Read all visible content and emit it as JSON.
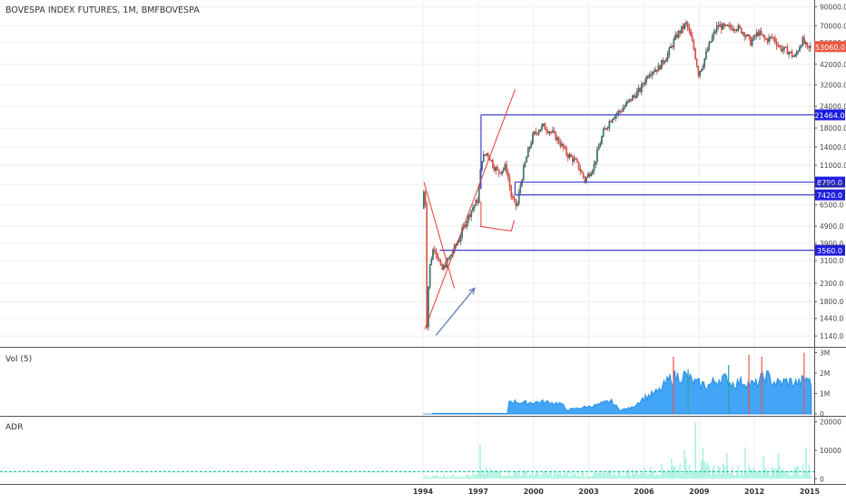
{
  "header": {
    "title": "BOVESPA INDEX FUTURES, 1M, BMFBOVESPA"
  },
  "colors": {
    "up": "#26a69a",
    "down": "#ef5350",
    "body_up": "#2b2b2b",
    "body_down": "#c0392b",
    "level_line": "#3f3fd0",
    "level_box": "#1e1ee0",
    "price_box": "#e9573f",
    "drawing_red": "#e53935",
    "drawing_arrow": "#5c79b5",
    "volume": "#1e88e5",
    "volume_area": "#42a5f5",
    "adr": "#a7f3de",
    "adr_line": "#26c6a9",
    "grid": "#eeeeee",
    "border": "#555555"
  },
  "chart_data": [
    {
      "type": "candlestick",
      "name": "price",
      "title": "BOVESPA INDEX FUTURES, 1M, BMFBOVESPA",
      "y_scale": "log",
      "ylim": [
        1000,
        95000
      ],
      "y_ticks": [
        1140,
        1440,
        1800,
        2300,
        3100,
        3900,
        4900,
        6500,
        8500,
        11000,
        14000,
        18000,
        24000,
        32000,
        42000,
        56000,
        70000,
        90000
      ],
      "y_tick_labels": [
        "1140.0",
        "1440.0",
        "1800.0",
        "2300.0",
        "3100.0",
        "3900.0",
        "4900.0",
        "6500.0",
        "8500.0",
        "11000.0",
        "14000.0",
        "18000.0",
        "24000.0",
        "32000.0",
        "42000.0",
        "56000.0",
        "70000.0",
        "90000.0"
      ],
      "x_range": [
        1994.0,
        2015.1
      ],
      "x_ticks": [
        1994,
        1997,
        2000,
        2003,
        2006,
        2009,
        2012,
        2015
      ],
      "x_tick_labels": [
        "1994",
        "1997",
        "2000",
        "2003",
        "2006",
        "2009",
        "2012",
        "2015"
      ],
      "price_path": [
        [
          1994.0,
          6200
        ],
        [
          1994.05,
          8000
        ],
        [
          1994.12,
          7000
        ],
        [
          1994.2,
          1250
        ],
        [
          1994.35,
          2800
        ],
        [
          1994.6,
          3800
        ],
        [
          1995.0,
          2700
        ],
        [
          1995.5,
          3300
        ],
        [
          1996.0,
          4200
        ],
        [
          1996.6,
          6000
        ],
        [
          1997.0,
          7000
        ],
        [
          1997.2,
          12000
        ],
        [
          1997.5,
          13000
        ],
        [
          1997.8,
          11000
        ],
        [
          1998.1,
          10000
        ],
        [
          1998.5,
          10800
        ],
        [
          1998.8,
          7200
        ],
        [
          1999.1,
          6300
        ],
        [
          1999.5,
          10800
        ],
        [
          2000.0,
          16500
        ],
        [
          2000.5,
          18500
        ],
        [
          2001.0,
          17000
        ],
        [
          2001.4,
          15000
        ],
        [
          2001.8,
          12800
        ],
        [
          2002.3,
          11500
        ],
        [
          2002.8,
          9000
        ],
        [
          2003.3,
          11000
        ],
        [
          2003.8,
          17000
        ],
        [
          2004.3,
          21000
        ],
        [
          2004.8,
          23000
        ],
        [
          2005.3,
          26500
        ],
        [
          2005.8,
          30000
        ],
        [
          2006.3,
          38000
        ],
        [
          2006.8,
          40000
        ],
        [
          2007.3,
          48000
        ],
        [
          2007.8,
          62000
        ],
        [
          2008.3,
          72000
        ],
        [
          2008.7,
          52000
        ],
        [
          2008.95,
          37000
        ],
        [
          2009.2,
          42000
        ],
        [
          2009.6,
          56000
        ],
        [
          2010.0,
          70000
        ],
        [
          2010.5,
          68000
        ],
        [
          2011.0,
          69000
        ],
        [
          2011.5,
          63000
        ],
        [
          2011.8,
          56000
        ],
        [
          2012.2,
          64000
        ],
        [
          2012.6,
          58000
        ],
        [
          2013.0,
          60000
        ],
        [
          2013.4,
          52000
        ],
        [
          2013.8,
          50000
        ],
        [
          2014.2,
          46000
        ],
        [
          2014.6,
          58000
        ],
        [
          2014.9,
          51000
        ],
        [
          2015.1,
          53060
        ]
      ],
      "current_price": "53060.0",
      "levels": [
        {
          "value": 21464,
          "label": "21464.0",
          "from_x": 1997.15
        },
        {
          "value": 8790,
          "label": "8790.0",
          "from_x": 1999.0
        },
        {
          "value": 7420,
          "label": "7420.0",
          "from_x": 1999.0
        },
        {
          "value": 3560,
          "label": "3560.0",
          "from_x": 1994.9
        }
      ]
    },
    {
      "type": "volume",
      "name": "Vol (5)",
      "title": "Vol (5)",
      "ylim": [
        0,
        3200000
      ],
      "y_ticks": [
        0,
        1000000,
        2000000,
        3000000
      ],
      "y_tick_labels": [
        "0",
        "1M",
        "2M",
        "3M"
      ],
      "path": [
        [
          1994.0,
          0
        ],
        [
          1998.6,
          0
        ],
        [
          1998.65,
          650000
        ],
        [
          1999.5,
          550000
        ],
        [
          2000.5,
          600000
        ],
        [
          2001.5,
          520000
        ],
        [
          2001.8,
          200000
        ],
        [
          2002.5,
          300000
        ],
        [
          2003.5,
          450000
        ],
        [
          2004.2,
          650000
        ],
        [
          2004.7,
          200000
        ],
        [
          2005.3,
          300000
        ],
        [
          2006.0,
          800000
        ],
        [
          2006.8,
          1100000
        ],
        [
          2007.5,
          1800000
        ],
        [
          2008.2,
          1900000
        ],
        [
          2008.8,
          1500000
        ],
        [
          2009.5,
          1400000
        ],
        [
          2010.2,
          1800000
        ],
        [
          2010.8,
          1500000
        ],
        [
          2011.5,
          1600000
        ],
        [
          2012.0,
          1400000
        ],
        [
          2012.6,
          1900000
        ],
        [
          2013.2,
          1500000
        ],
        [
          2013.8,
          1600000
        ],
        [
          2014.4,
          1500000
        ],
        [
          2014.9,
          1800000
        ],
        [
          2015.1,
          1300000
        ]
      ],
      "spikes": [
        [
          2007.6,
          2800000
        ],
        [
          2008.4,
          2200000
        ],
        [
          2010.6,
          2400000
        ],
        [
          2011.7,
          2900000
        ],
        [
          2012.4,
          2800000
        ],
        [
          2014.7,
          3000000
        ]
      ]
    },
    {
      "type": "area",
      "name": "ADR",
      "title": "ADR",
      "ylim": [
        -1500,
        21500
      ],
      "y_ticks": [
        0,
        10000,
        20000
      ],
      "y_tick_labels": [
        "0",
        "10000",
        "20000"
      ],
      "reference_line": 2500,
      "baseline_path": [
        [
          1994.0,
          800
        ],
        [
          1997.0,
          1200
        ],
        [
          1997.1,
          2500
        ],
        [
          2000.0,
          1800
        ],
        [
          2003.0,
          1500
        ],
        [
          2006.0,
          2500
        ],
        [
          2007.5,
          3500
        ],
        [
          2008.5,
          4500
        ],
        [
          2009.5,
          3500
        ],
        [
          2011.0,
          3000
        ],
        [
          2013.0,
          2800
        ],
        [
          2015.1,
          3000
        ]
      ],
      "spikes": [
        [
          1997.1,
          12000
        ],
        [
          2007.5,
          7000
        ],
        [
          2008.2,
          10000
        ],
        [
          2008.8,
          20000
        ],
        [
          2009.2,
          11000
        ],
        [
          2010.5,
          9000
        ],
        [
          2011.5,
          11000
        ],
        [
          2012.5,
          8000
        ],
        [
          2013.3,
          9000
        ],
        [
          2014.8,
          11000
        ]
      ]
    }
  ]
}
